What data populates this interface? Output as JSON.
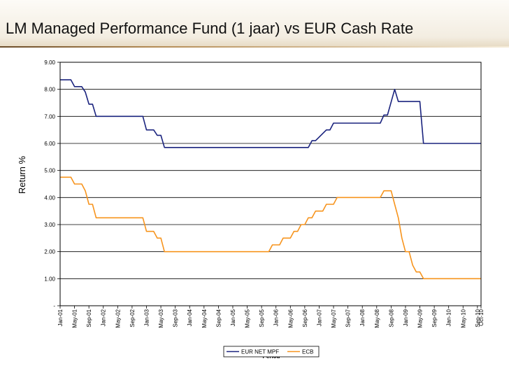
{
  "page": {
    "title": "LM Managed Performance Fund (1 jaar) vs EUR Cash Rate"
  },
  "chart_data": {
    "type": "line",
    "title": "LM Managed Performance Fund (1 jaar) vs EUR Cash Rate",
    "xlabel": "Period",
    "ylabel": "Return %",
    "ylim": [
      0,
      9
    ],
    "grid": true,
    "legend_position": "bottom-center",
    "y_tick_labels": [
      "-",
      "1.00",
      "2.00",
      "3.00",
      "4.00",
      "5.00",
      "6.00",
      "7.00",
      "8.00",
      "9.00"
    ],
    "x_tick_labels": [
      "Jan-01",
      "May-01",
      "Sep-01",
      "Jan-02",
      "May-02",
      "Sep-02",
      "Jan-03",
      "May-03",
      "Sep-03",
      "Jan-04",
      "May-04",
      "Sep-04",
      "Jan-05",
      "May-05",
      "Sep-05",
      "Jan-06",
      "May-06",
      "Sep-06",
      "Jan-07",
      "May-07",
      "Sep-07",
      "Jan-08",
      "May-08",
      "Sep-08",
      "Jan-09",
      "May-09",
      "Sep-09",
      "Jan-10",
      "May-10",
      "Sep-10",
      "Oct-10"
    ],
    "series": [
      {
        "name": "EUR NET MPF",
        "color": "#1a237e",
        "points": [
          [
            "Jan-01",
            8.35
          ],
          [
            "Apr-01",
            8.35
          ],
          [
            "May-01",
            8.1
          ],
          [
            "Jul-01",
            8.1
          ],
          [
            "Aug-01",
            7.9
          ],
          [
            "Sep-01",
            7.45
          ],
          [
            "Oct-01",
            7.45
          ],
          [
            "Nov-01",
            7.0
          ],
          [
            "Dec-02",
            7.0
          ],
          [
            "Jan-03",
            6.5
          ],
          [
            "Mar-03",
            6.5
          ],
          [
            "Apr-03",
            6.3
          ],
          [
            "May-03",
            6.3
          ],
          [
            "Jun-03",
            5.85
          ],
          [
            "Oct-06",
            5.85
          ],
          [
            "Nov-06",
            6.1
          ],
          [
            "Dec-06",
            6.1
          ],
          [
            "Mar-07",
            6.5
          ],
          [
            "Apr-07",
            6.5
          ],
          [
            "May-07",
            6.75
          ],
          [
            "Jun-08",
            6.75
          ],
          [
            "Jul-08",
            7.05
          ],
          [
            "Aug-08",
            7.05
          ],
          [
            "Oct-08",
            8.0
          ],
          [
            "Nov-08",
            7.55
          ],
          [
            "May-09",
            7.55
          ],
          [
            "Jun-09",
            6.0
          ],
          [
            "Oct-10",
            6.0
          ]
        ]
      },
      {
        "name": "ECB",
        "color": "#f7941d",
        "points": [
          [
            "Jan-01",
            4.75
          ],
          [
            "Apr-01",
            4.75
          ],
          [
            "May-01",
            4.5
          ],
          [
            "Jul-01",
            4.5
          ],
          [
            "Aug-01",
            4.25
          ],
          [
            "Sep-01",
            3.75
          ],
          [
            "Oct-01",
            3.75
          ],
          [
            "Nov-01",
            3.25
          ],
          [
            "Dec-02",
            3.25
          ],
          [
            "Jan-03",
            2.75
          ],
          [
            "Mar-03",
            2.75
          ],
          [
            "Apr-03",
            2.5
          ],
          [
            "May-03",
            2.5
          ],
          [
            "Jun-03",
            2.0
          ],
          [
            "Nov-05",
            2.0
          ],
          [
            "Dec-05",
            2.25
          ],
          [
            "Feb-06",
            2.25
          ],
          [
            "Mar-06",
            2.5
          ],
          [
            "May-06",
            2.5
          ],
          [
            "Jun-06",
            2.75
          ],
          [
            "Jul-06",
            2.75
          ],
          [
            "Aug-06",
            3.0
          ],
          [
            "Sep-06",
            3.0
          ],
          [
            "Oct-06",
            3.25
          ],
          [
            "Nov-06",
            3.25
          ],
          [
            "Dec-06",
            3.5
          ],
          [
            "Feb-07",
            3.5
          ],
          [
            "Mar-07",
            3.75
          ],
          [
            "May-07",
            3.75
          ],
          [
            "Jun-07",
            4.0
          ],
          [
            "Jun-08",
            4.0
          ],
          [
            "Jul-08",
            4.25
          ],
          [
            "Sep-08",
            4.25
          ],
          [
            "Oct-08",
            3.75
          ],
          [
            "Nov-08",
            3.25
          ],
          [
            "Dec-08",
            2.5
          ],
          [
            "Jan-09",
            2.0
          ],
          [
            "Feb-09",
            2.0
          ],
          [
            "Mar-09",
            1.5
          ],
          [
            "Apr-09",
            1.25
          ],
          [
            "May-09",
            1.25
          ],
          [
            "Jun-09",
            1.0
          ],
          [
            "Oct-10",
            1.0
          ]
        ]
      }
    ]
  }
}
